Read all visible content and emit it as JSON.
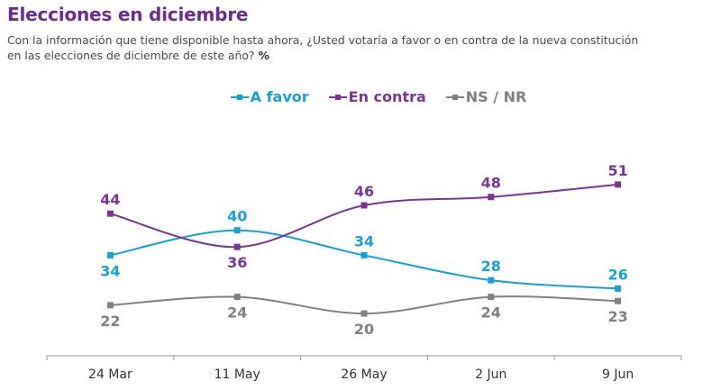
{
  "header": {
    "title": "Elecciones en diciembre",
    "subtitle_line1": "Con la información que tiene disponible hasta ahora, ¿Usted votaría a favor o en contra de la nueva constitución",
    "subtitle_line2": "en las elecciones de diciembre de este año?",
    "subtitle_unit": "%"
  },
  "chart_data": {
    "type": "line",
    "title": "Elecciones en diciembre",
    "xlabel": "",
    "ylabel": "%",
    "categories": [
      "24 Mar",
      "11 May",
      "26 May",
      "2 Jun",
      "9 Jun"
    ],
    "series": [
      {
        "name": "A favor",
        "color": "#1a9fd0",
        "values": [
          34,
          40,
          34,
          28,
          26
        ],
        "label_position": [
          "below",
          "above",
          "above",
          "above",
          "above"
        ]
      },
      {
        "name": "En contra",
        "color": "#7a3594",
        "values": [
          44,
          36,
          46,
          48,
          51
        ],
        "label_position": [
          "above",
          "below",
          "above",
          "above",
          "above"
        ]
      },
      {
        "name": "NS / NR",
        "color": "#808080",
        "values": [
          22,
          24,
          20,
          24,
          23
        ],
        "label_position": [
          "below",
          "below",
          "below",
          "below",
          "below"
        ]
      }
    ],
    "legend_position": "top-center",
    "grid": false,
    "smooth": true,
    "marker": "square"
  }
}
